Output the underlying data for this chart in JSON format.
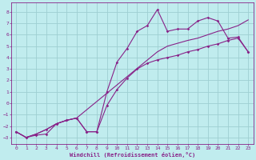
{
  "xlabel": "Windchill (Refroidissement éolien,°C)",
  "bg_color": "#c0ecee",
  "grid_color": "#9ecfd2",
  "line_color": "#882288",
  "xlim": [
    -0.5,
    23.5
  ],
  "ylim": [
    -3.6,
    8.8
  ],
  "xticks": [
    0,
    1,
    2,
    3,
    4,
    5,
    6,
    7,
    8,
    9,
    10,
    11,
    12,
    13,
    14,
    15,
    16,
    17,
    18,
    19,
    20,
    21,
    22,
    23
  ],
  "yticks": [
    -3,
    -2,
    -1,
    0,
    1,
    2,
    3,
    4,
    5,
    6,
    7,
    8
  ],
  "line1_x": [
    0,
    1,
    2,
    3,
    4,
    5,
    6,
    7,
    8,
    9,
    10,
    11,
    12,
    13,
    14,
    15,
    16,
    17,
    18,
    19,
    20,
    21,
    22,
    23
  ],
  "line1_y": [
    -2.5,
    -3.0,
    -2.8,
    -2.7,
    -1.8,
    -1.5,
    -1.3,
    -2.5,
    -2.5,
    1.0,
    3.6,
    4.8,
    6.3,
    6.8,
    8.2,
    6.3,
    6.5,
    6.5,
    7.2,
    7.5,
    7.2,
    5.7,
    5.8,
    4.5
  ],
  "line2_x": [
    0,
    1,
    2,
    3,
    4,
    5,
    6,
    14,
    15,
    17,
    18,
    20,
    21,
    22,
    23
  ],
  "line2_y": [
    -2.5,
    -3.0,
    -2.7,
    -2.3,
    -1.8,
    -1.5,
    -1.3,
    4.5,
    5.0,
    5.5,
    5.7,
    6.3,
    6.5,
    6.8,
    7.3
  ],
  "line3_x": [
    0,
    1,
    2,
    3,
    4,
    5,
    6,
    7,
    8,
    9,
    10,
    11,
    12,
    13,
    14,
    15,
    16,
    17,
    18,
    19,
    20,
    21,
    22,
    23
  ],
  "line3_y": [
    -2.5,
    -3.0,
    -2.7,
    -2.3,
    -1.8,
    -1.5,
    -1.3,
    -2.5,
    -2.5,
    -0.2,
    1.2,
    2.2,
    3.0,
    3.5,
    3.8,
    4.0,
    4.2,
    4.5,
    4.7,
    5.0,
    5.2,
    5.5,
    5.7,
    4.5
  ]
}
